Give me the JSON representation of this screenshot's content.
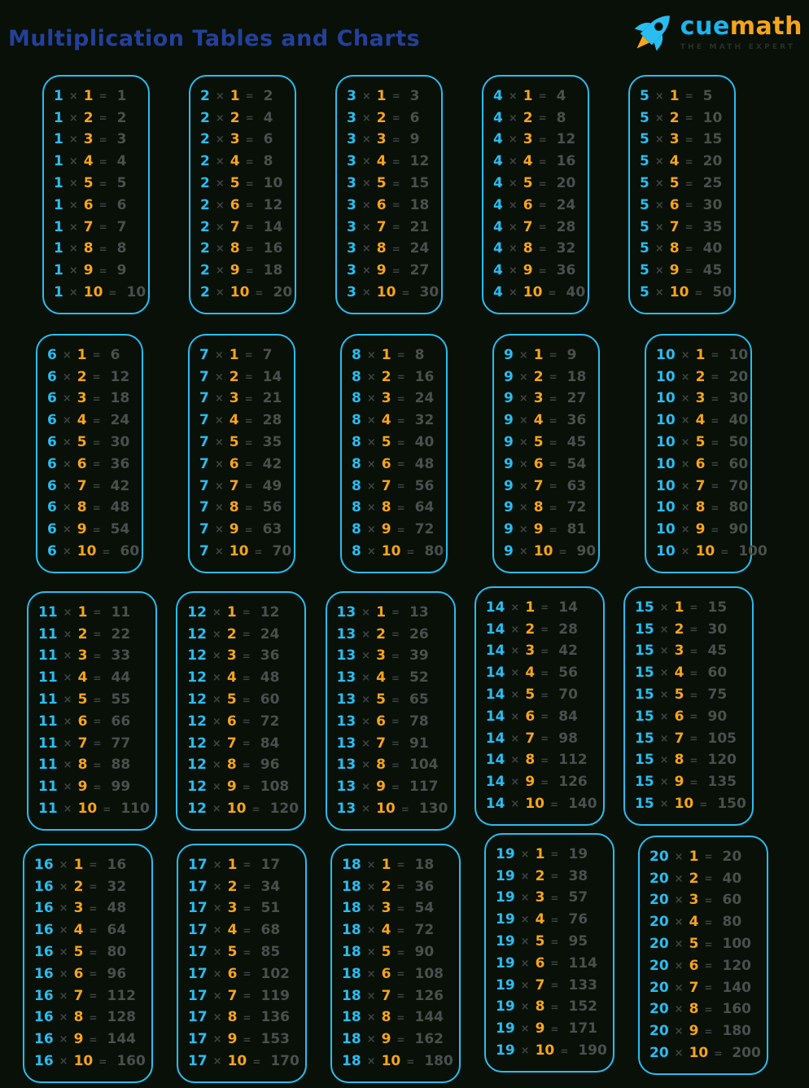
{
  "title": "Multiplication Tables and Charts",
  "logo": {
    "cue": "cue",
    "math": "math",
    "tagline": "THE MATH EXPERT",
    "icon": "rocket-icon"
  },
  "symbols": {
    "times": "×",
    "equals": "="
  },
  "colors": {
    "bg": "#081007",
    "cyan": "#29bdf2",
    "orange": "#f7a41a",
    "gray": "#4a4f4f",
    "op": "#3e4444",
    "title": "#24409b",
    "cue": "#1cb4ee",
    "math": "#f7a41a",
    "tagline": "#26312b"
  },
  "multipliers": [
    1,
    2,
    3,
    4,
    5,
    6,
    7,
    8,
    9,
    10
  ],
  "tables": [
    {
      "n": 1,
      "results": [
        1,
        2,
        3,
        4,
        5,
        6,
        7,
        8,
        9,
        10
      ]
    },
    {
      "n": 2,
      "results": [
        2,
        4,
        6,
        8,
        10,
        12,
        14,
        16,
        18,
        20
      ]
    },
    {
      "n": 3,
      "results": [
        3,
        6,
        9,
        12,
        15,
        18,
        21,
        24,
        27,
        30
      ]
    },
    {
      "n": 4,
      "results": [
        4,
        8,
        12,
        16,
        20,
        24,
        28,
        32,
        36,
        40
      ]
    },
    {
      "n": 5,
      "results": [
        5,
        10,
        15,
        20,
        25,
        30,
        35,
        40,
        45,
        50
      ]
    },
    {
      "n": 6,
      "results": [
        6,
        12,
        18,
        24,
        30,
        36,
        42,
        48,
        54,
        60
      ]
    },
    {
      "n": 7,
      "results": [
        7,
        14,
        21,
        28,
        35,
        42,
        49,
        56,
        63,
        70
      ]
    },
    {
      "n": 8,
      "results": [
        8,
        16,
        24,
        32,
        40,
        48,
        56,
        64,
        72,
        80
      ]
    },
    {
      "n": 9,
      "results": [
        9,
        18,
        27,
        36,
        45,
        54,
        63,
        72,
        81,
        90
      ]
    },
    {
      "n": 10,
      "results": [
        10,
        20,
        30,
        40,
        50,
        60,
        70,
        80,
        90,
        100
      ]
    },
    {
      "n": 11,
      "results": [
        11,
        22,
        33,
        44,
        55,
        66,
        77,
        88,
        99,
        110
      ]
    },
    {
      "n": 12,
      "results": [
        12,
        24,
        36,
        48,
        60,
        72,
        84,
        96,
        108,
        120
      ]
    },
    {
      "n": 13,
      "results": [
        13,
        26,
        39,
        52,
        65,
        78,
        91,
        104,
        117,
        130
      ]
    },
    {
      "n": 14,
      "results": [
        14,
        28,
        42,
        56,
        70,
        84,
        98,
        112,
        126,
        140
      ]
    },
    {
      "n": 15,
      "results": [
        15,
        30,
        45,
        60,
        75,
        90,
        105,
        120,
        135,
        150
      ]
    },
    {
      "n": 16,
      "results": [
        16,
        32,
        48,
        64,
        80,
        96,
        112,
        128,
        144,
        160
      ]
    },
    {
      "n": 17,
      "results": [
        17,
        34,
        51,
        68,
        85,
        102,
        119,
        136,
        153,
        170
      ]
    },
    {
      "n": 18,
      "results": [
        18,
        36,
        54,
        72,
        90,
        108,
        126,
        144,
        162,
        180
      ]
    },
    {
      "n": 19,
      "results": [
        19,
        38,
        57,
        76,
        95,
        114,
        133,
        152,
        171,
        190
      ]
    },
    {
      "n": 20,
      "results": [
        20,
        40,
        60,
        80,
        100,
        120,
        140,
        160,
        180,
        200
      ]
    }
  ]
}
